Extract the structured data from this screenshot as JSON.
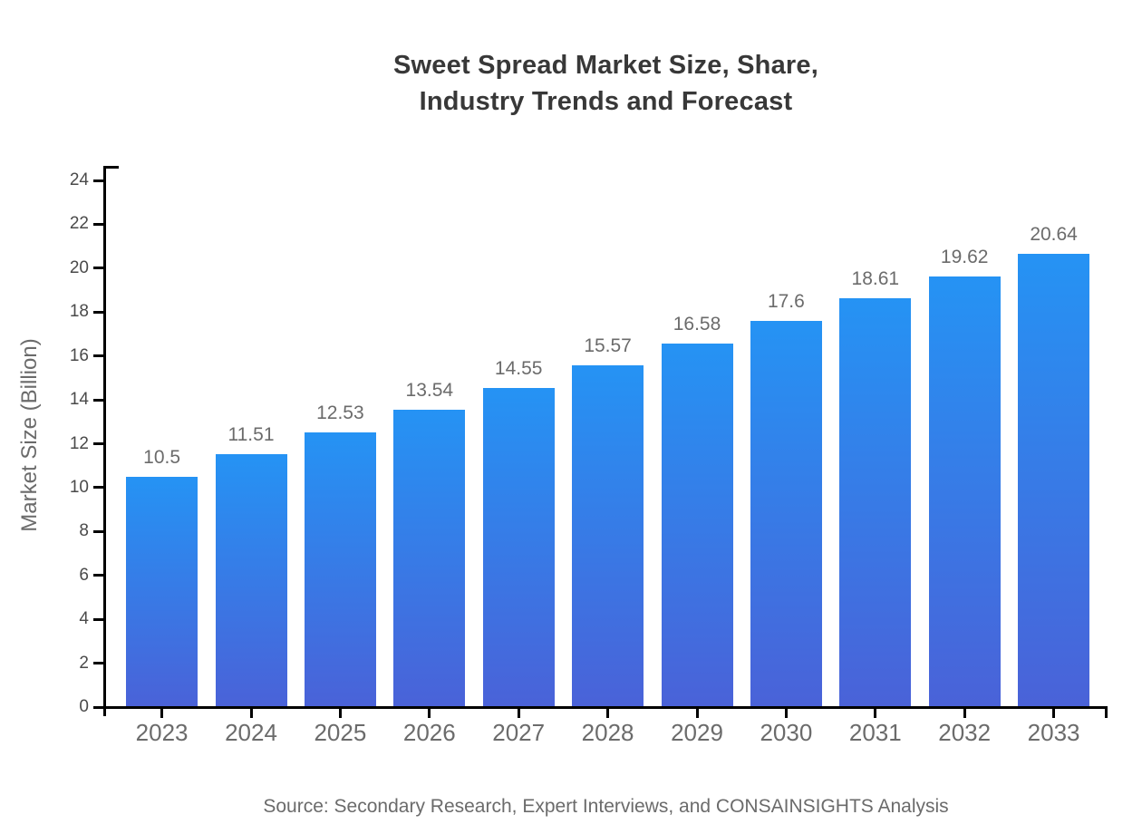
{
  "title": {
    "lines": [
      "Sweet Spread Market Size, Share,",
      "Industry Trends and Forecast"
    ]
  },
  "source": "Source: Secondary Research, Expert Interviews, and CONSAINSIGHTS Analysis",
  "colors": {
    "bar_gradient_top": "#2593F4",
    "bar_gradient_bottom": "#4A62D8",
    "axis": "#000000",
    "title_text": "#383838",
    "label_text": "#6b6b6b"
  },
  "chart_data": {
    "type": "bar",
    "title": "Sweet Spread Market Size, Share, Industry Trends and Forecast",
    "categories": [
      "2023",
      "2024",
      "2025",
      "2026",
      "2027",
      "2028",
      "2029",
      "2030",
      "2031",
      "2032",
      "2033"
    ],
    "values": [
      10.5,
      11.51,
      12.53,
      13.54,
      14.55,
      15.57,
      16.58,
      17.6,
      18.61,
      19.62,
      20.64
    ],
    "value_labels": [
      "10.5",
      "11.51",
      "12.53",
      "13.54",
      "14.55",
      "15.57",
      "16.58",
      "17.6",
      "18.61",
      "19.62",
      "20.64"
    ],
    "xlabel": "",
    "ylabel": "Market Size (Billion)",
    "ylim": [
      0,
      24
    ],
    "yticks": [
      0,
      2,
      4,
      6,
      8,
      10,
      12,
      14,
      16,
      18,
      20,
      22,
      24
    ],
    "grid": false,
    "legend": "none"
  }
}
